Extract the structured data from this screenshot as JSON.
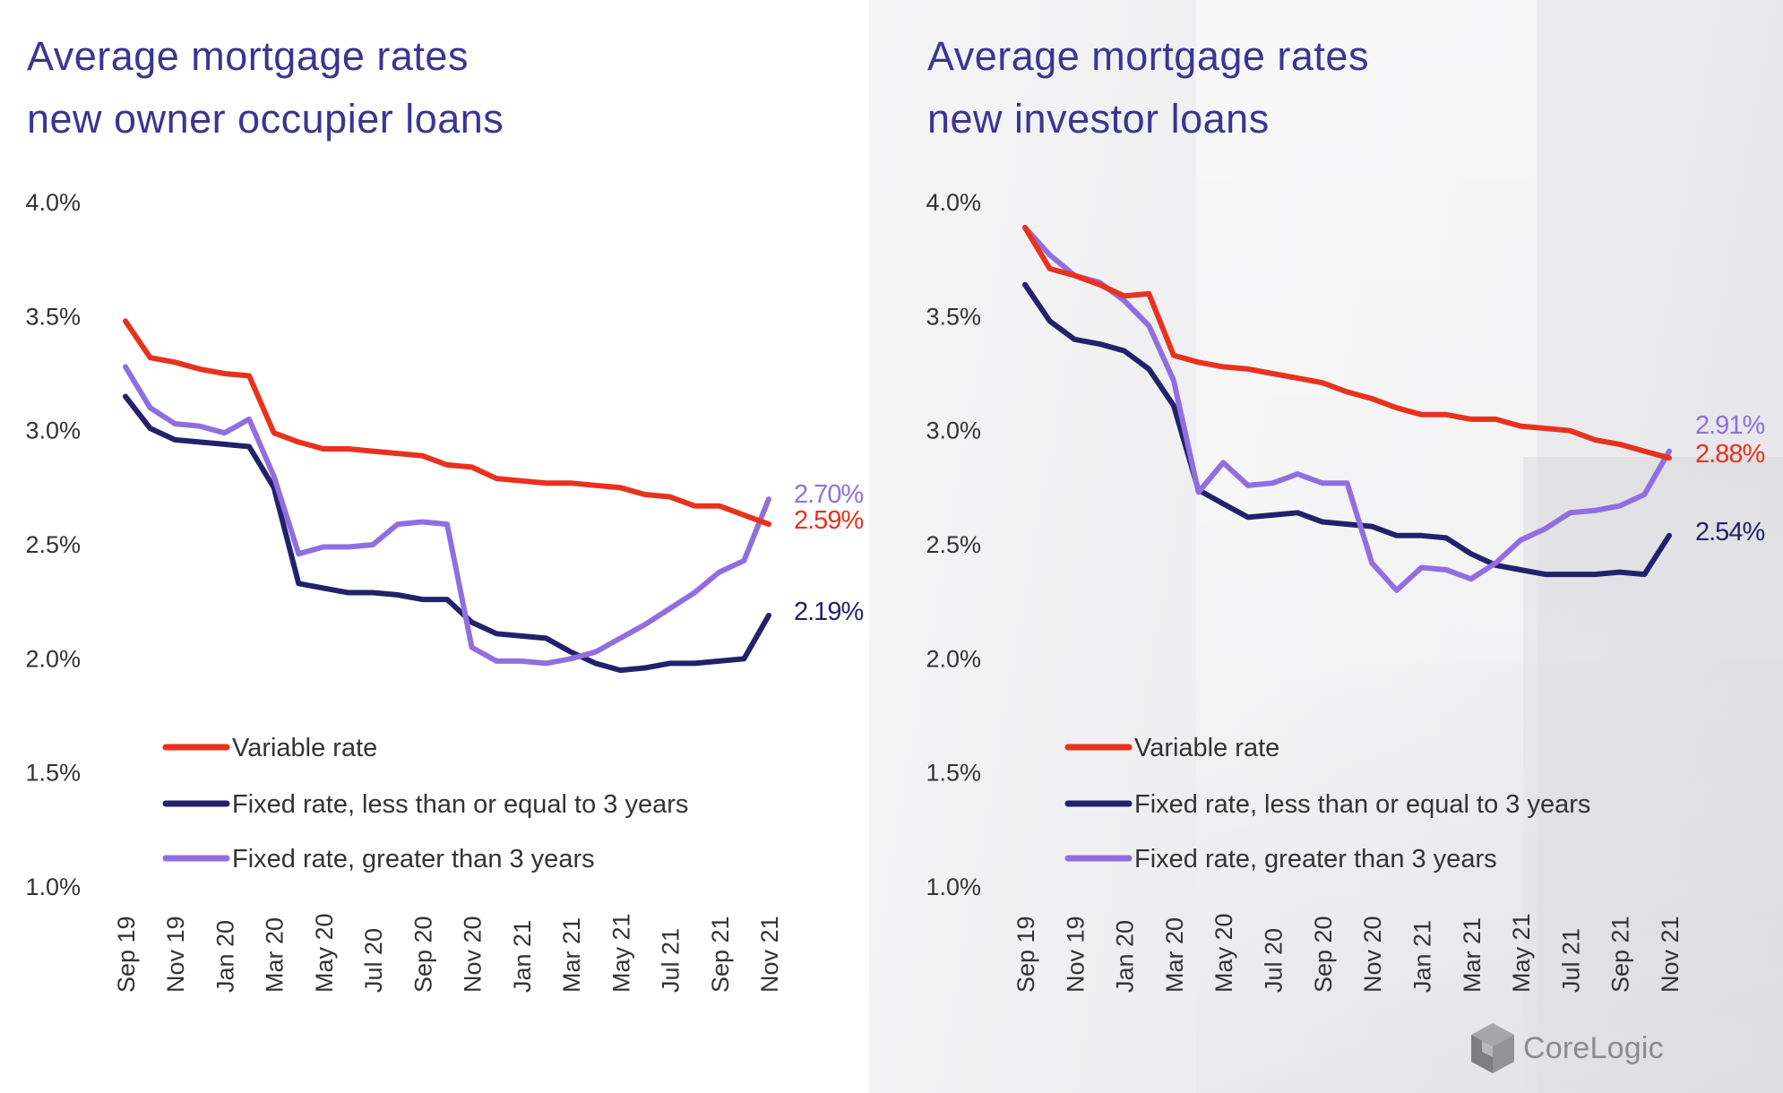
{
  "brand": {
    "name": "CoreLogic",
    "colors": {
      "variable": "#e8321e",
      "fixed_short": "#23216b",
      "fixed_long": "#8f6fe0",
      "title": "#3a3592",
      "axis_text": "#333333"
    }
  },
  "chart_data": [
    {
      "type": "line",
      "title": "Average mortgage rates new owner occupier loans",
      "title_lines": [
        "Average mortgage rates",
        "new owner occupier loans"
      ],
      "ylim": [
        1.0,
        4.0
      ],
      "yticks": [
        "4.0%",
        "3.5%",
        "3.0%",
        "2.5%",
        "2.0%",
        "1.5%",
        "1.0%"
      ],
      "ytick_values": [
        4.0,
        3.5,
        3.0,
        2.5,
        2.0,
        1.5,
        1.0
      ],
      "xlabels": [
        "Sep 19",
        "Nov 19",
        "Jan 20",
        "Mar 20",
        "May 20",
        "Jul 20",
        "Sep 20",
        "Nov 20",
        "Jan 21",
        "Mar 21",
        "May 21",
        "Jul 21",
        "Sep 21",
        "Nov 21"
      ],
      "series": [
        {
          "name": "Variable rate",
          "key": "variable",
          "end_label": "2.59%",
          "values": [
            3.48,
            3.32,
            3.3,
            3.27,
            3.25,
            3.24,
            2.99,
            2.95,
            2.92,
            2.92,
            2.91,
            2.9,
            2.89,
            2.85,
            2.84,
            2.79,
            2.78,
            2.77,
            2.77,
            2.76,
            2.75,
            2.72,
            2.71,
            2.67,
            2.67,
            2.63,
            2.59
          ]
        },
        {
          "name": "Fixed rate, less than or equal to 3 years",
          "key": "fixed_short",
          "end_label": "2.19%",
          "values": [
            3.15,
            3.01,
            2.96,
            2.95,
            2.94,
            2.93,
            2.75,
            2.33,
            2.31,
            2.29,
            2.29,
            2.28,
            2.26,
            2.26,
            2.16,
            2.11,
            2.1,
            2.09,
            2.03,
            1.98,
            1.95,
            1.96,
            1.98,
            1.98,
            1.99,
            2.0,
            2.19
          ]
        },
        {
          "name": "Fixed rate, greater than 3 years",
          "key": "fixed_long",
          "end_label": "2.70%",
          "values": [
            3.28,
            3.1,
            3.03,
            3.02,
            2.99,
            3.05,
            2.8,
            2.46,
            2.49,
            2.49,
            2.5,
            2.59,
            2.6,
            2.59,
            2.05,
            1.99,
            1.99,
            1.98,
            2.0,
            2.03,
            2.09,
            2.15,
            2.22,
            2.29,
            2.38,
            2.43,
            2.7
          ]
        }
      ],
      "legend": [
        "Variable rate",
        "Fixed rate, less than or equal to 3 years",
        "Fixed rate, greater than 3 years"
      ],
      "legend_position": "lower-left"
    },
    {
      "type": "line",
      "title": "Average mortgage rates new investor loans",
      "title_lines": [
        "Average mortgage rates",
        "new investor loans"
      ],
      "ylim": [
        1.0,
        4.0
      ],
      "yticks": [
        "4.0%",
        "3.5%",
        "3.0%",
        "2.5%",
        "2.0%",
        "1.5%",
        "1.0%"
      ],
      "ytick_values": [
        4.0,
        3.5,
        3.0,
        2.5,
        2.0,
        1.5,
        1.0
      ],
      "xlabels": [
        "Sep 19",
        "Nov 19",
        "Jan 20",
        "Mar 20",
        "May 20",
        "Jul 20",
        "Sep 20",
        "Nov 20",
        "Jan 21",
        "Mar 21",
        "May 21",
        "Jul 21",
        "Sep 21",
        "Nov 21"
      ],
      "series": [
        {
          "name": "Variable rate",
          "key": "variable",
          "end_label": "2.88%",
          "values": [
            3.89,
            3.71,
            3.68,
            3.64,
            3.59,
            3.6,
            3.33,
            3.3,
            3.28,
            3.27,
            3.25,
            3.23,
            3.21,
            3.17,
            3.14,
            3.1,
            3.07,
            3.07,
            3.05,
            3.05,
            3.02,
            3.01,
            3.0,
            2.96,
            2.94,
            2.91,
            2.88
          ]
        },
        {
          "name": "Fixed rate, less than or equal to 3 years",
          "key": "fixed_short",
          "end_label": "2.54%",
          "values": [
            3.64,
            3.48,
            3.4,
            3.38,
            3.35,
            3.27,
            3.11,
            2.74,
            2.68,
            2.62,
            2.63,
            2.64,
            2.6,
            2.59,
            2.58,
            2.54,
            2.54,
            2.53,
            2.46,
            2.41,
            2.39,
            2.37,
            2.37,
            2.37,
            2.38,
            2.37,
            2.54
          ]
        },
        {
          "name": "Fixed rate, greater than 3 years",
          "key": "fixed_long",
          "end_label": "2.91%",
          "values": [
            3.89,
            3.77,
            3.68,
            3.65,
            3.57,
            3.46,
            3.22,
            2.73,
            2.86,
            2.76,
            2.77,
            2.81,
            2.77,
            2.77,
            2.42,
            2.3,
            2.4,
            2.39,
            2.35,
            2.42,
            2.52,
            2.57,
            2.64,
            2.65,
            2.67,
            2.72,
            2.91
          ]
        }
      ],
      "legend": [
        "Variable rate",
        "Fixed rate, less than or equal to 3 years",
        "Fixed rate, greater than 3 years"
      ],
      "legend_position": "lower-left"
    }
  ]
}
